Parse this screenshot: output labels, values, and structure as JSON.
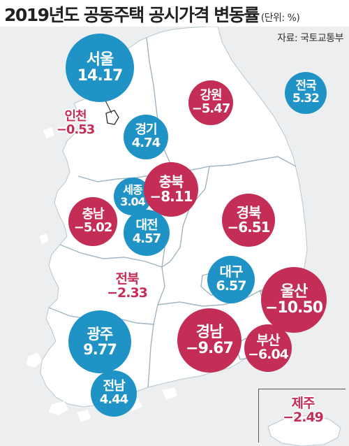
{
  "header": {
    "title": "2019년도 공동주택 공시가격 변동률",
    "unit": "(단위: %)",
    "source": "자료: 국토교통부"
  },
  "colors": {
    "increase": "#1f93c5",
    "decrease": "#c42d55",
    "land": "#ffffff",
    "sea": "#eceeef",
    "border": "#9fb5c2"
  },
  "regions": [
    {
      "key": "seoul",
      "name": "서울",
      "value": "14.17"
    },
    {
      "key": "national",
      "name": "전국",
      "value": "5.32"
    },
    {
      "key": "gangwon",
      "name": "강원",
      "value": "−5.47"
    },
    {
      "key": "incheon",
      "name": "인천",
      "value": "−0.53"
    },
    {
      "key": "gyeonggi",
      "name": "경기",
      "value": "4.74"
    },
    {
      "key": "chungbuk",
      "name": "충북",
      "value": "−8.11"
    },
    {
      "key": "sejong",
      "name": "세종",
      "value": "3.04"
    },
    {
      "key": "chungnam",
      "name": "충남",
      "value": "−5.02"
    },
    {
      "key": "daejeon",
      "name": "대전",
      "value": "4.57"
    },
    {
      "key": "gyeongbuk",
      "name": "경북",
      "value": "−6.51"
    },
    {
      "key": "jeonbuk",
      "name": "전북",
      "value": "−2.33"
    },
    {
      "key": "daegu",
      "name": "대구",
      "value": "6.57"
    },
    {
      "key": "ulsan",
      "name": "울산",
      "value": "−10.50"
    },
    {
      "key": "gwangju",
      "name": "광주",
      "value": "9.77"
    },
    {
      "key": "gyeongnam",
      "name": "경남",
      "value": "−9.67"
    },
    {
      "key": "busan",
      "name": "부산",
      "value": "−6.04"
    },
    {
      "key": "jeonnam",
      "name": "전남",
      "value": "4.44"
    },
    {
      "key": "jeju",
      "name": "제주",
      "value": "−2.49"
    }
  ]
}
